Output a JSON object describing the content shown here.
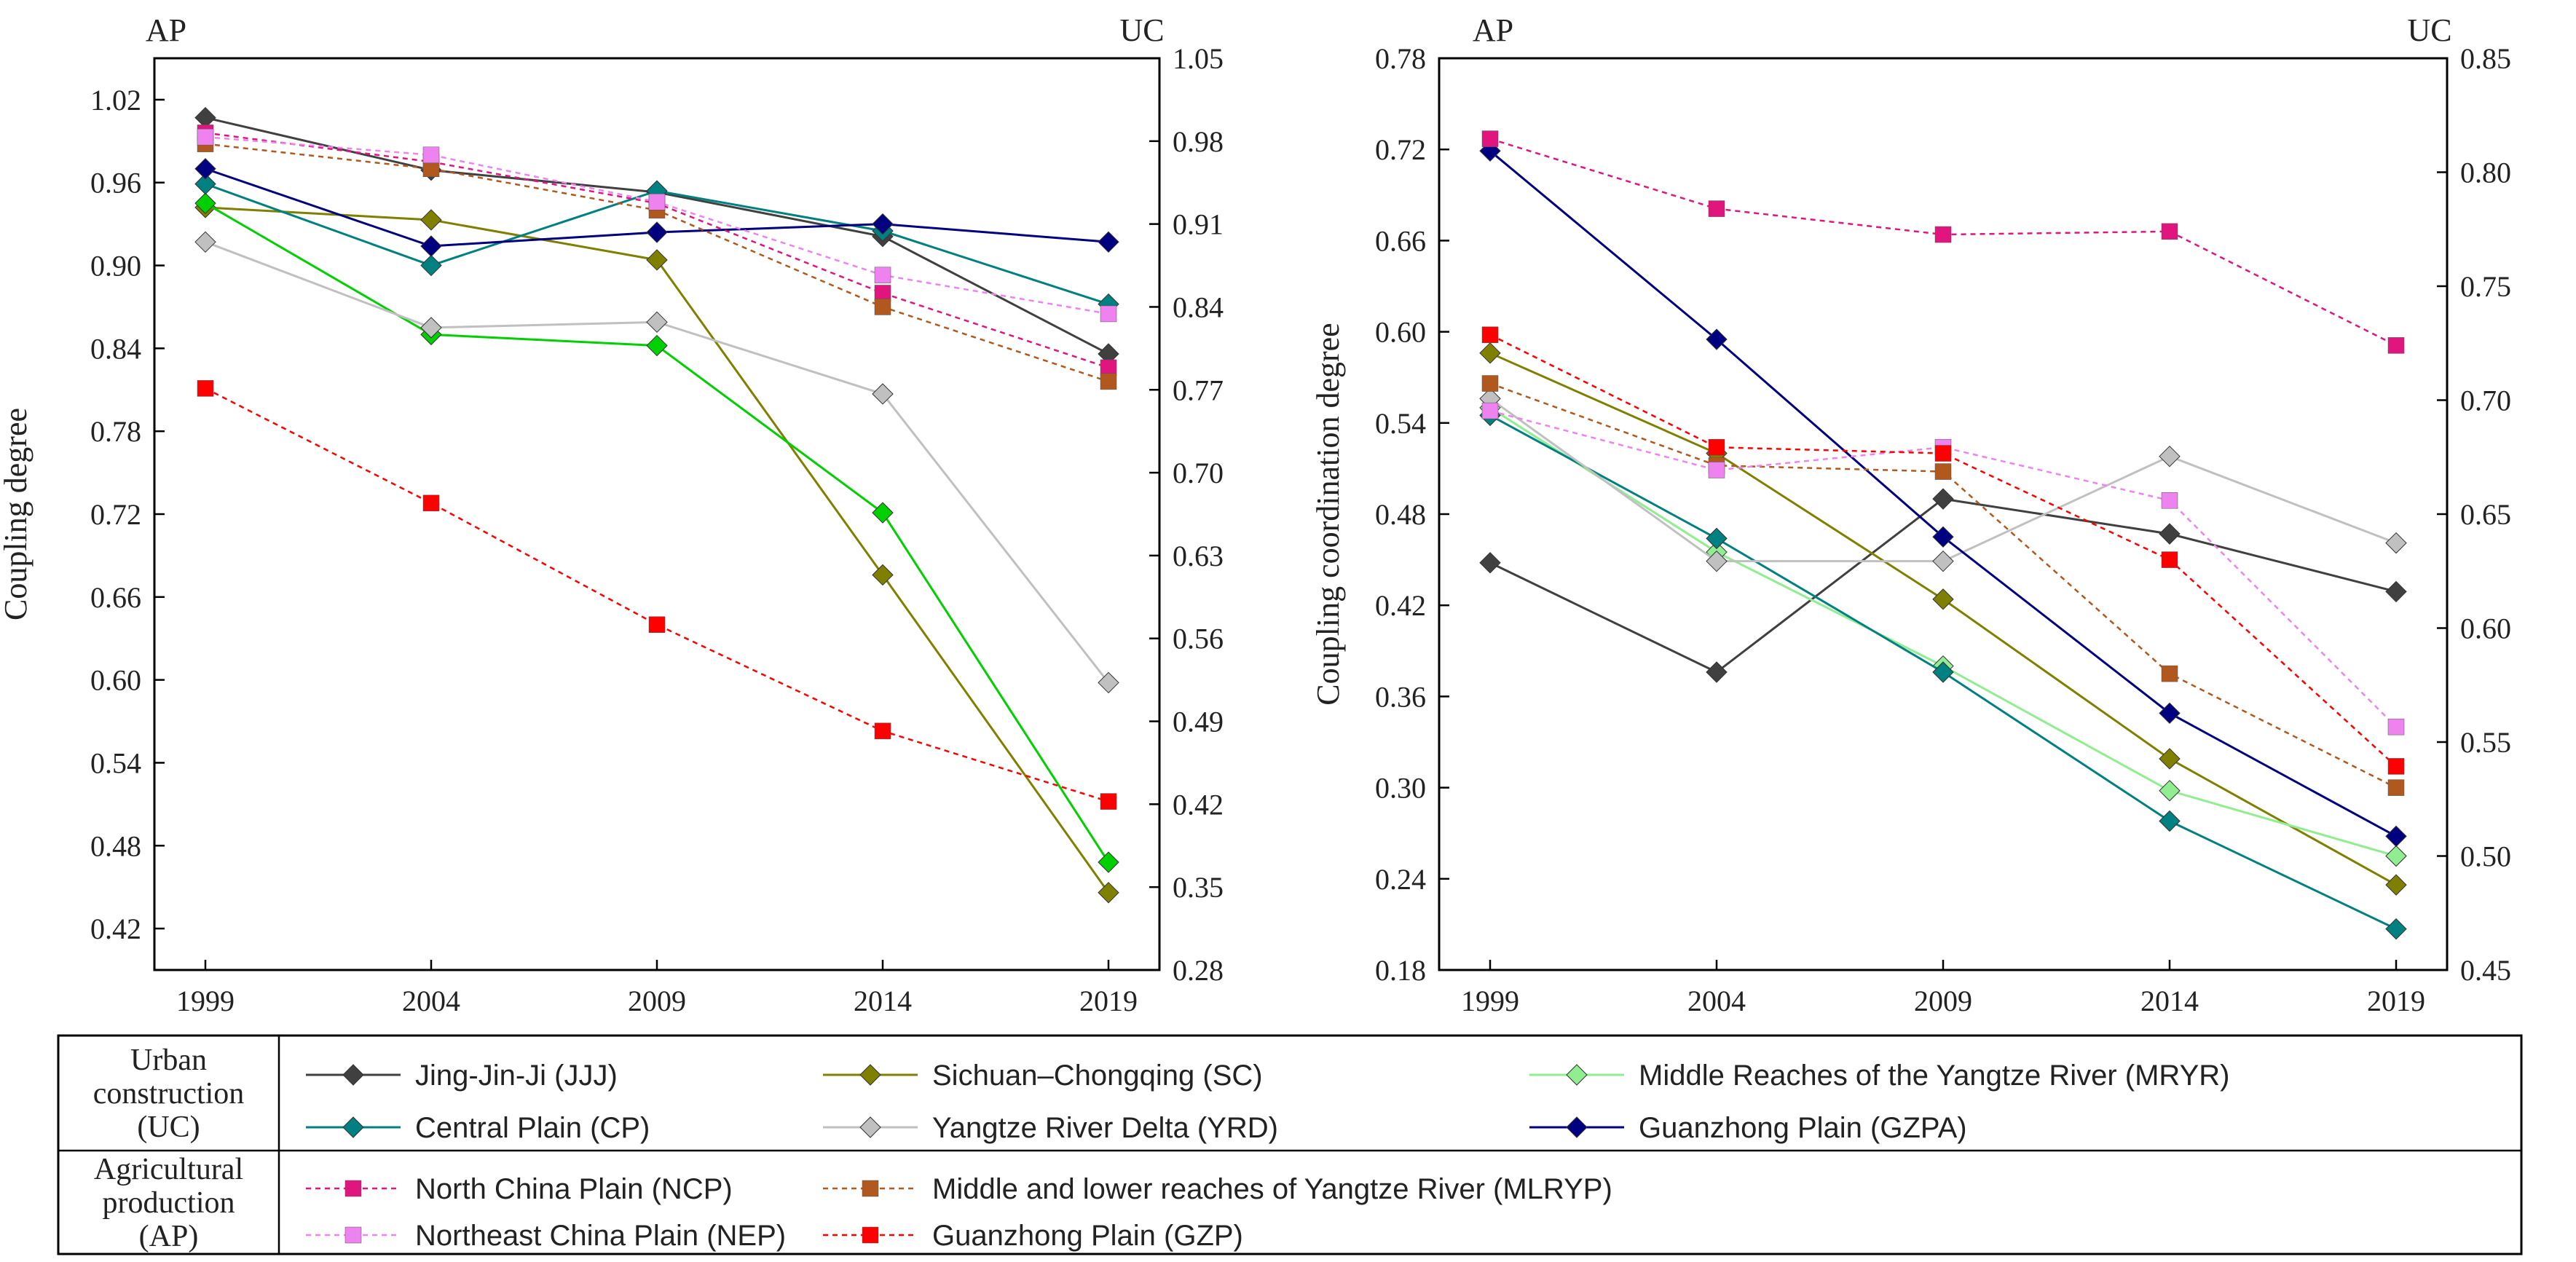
{
  "colors": {
    "JJJ": "#404040",
    "SC": "#808000",
    "MRYR": "#90ee90",
    "CP": "#008080",
    "YRD": "#c0c0c0",
    "GZPA": "#000080",
    "NCP": "#e0157e",
    "MLRYP": "#b0581e",
    "NEP": "#ee82ee",
    "GZP": "#ff0000",
    "GREEN_UC": "#00d000"
  },
  "legend": {
    "uc_group": [
      "Urban",
      "construction",
      "(UC)"
    ],
    "ap_group": [
      "Agricultural",
      "production",
      "(AP)"
    ],
    "items": [
      {
        "key": "JJJ",
        "label": "Jing-Jin-Ji (JJJ)",
        "dashed": false,
        "marker": "diamond"
      },
      {
        "key": "SC",
        "label": "Sichuan–Chongqing (SC)",
        "dashed": false,
        "marker": "diamond"
      },
      {
        "key": "MRYR",
        "label": "Middle Reaches of the Yangtze River (MRYR)",
        "dashed": false,
        "marker": "diamond"
      },
      {
        "key": "CP",
        "label": "Central Plain (CP)",
        "dashed": false,
        "marker": "diamond"
      },
      {
        "key": "YRD",
        "label": "Yangtze River Delta (YRD)",
        "dashed": false,
        "marker": "diamond"
      },
      {
        "key": "GZPA",
        "label": "Guanzhong Plain (GZPA)",
        "dashed": false,
        "marker": "diamond"
      },
      {
        "key": "NCP",
        "label": "North China Plain (NCP)",
        "dashed": true,
        "marker": "square"
      },
      {
        "key": "MLRYP",
        "label": "Middle and lower reaches of Yangtze River (MLRYP)",
        "dashed": true,
        "marker": "square"
      },
      {
        "key": "NEP",
        "label": "Northeast China Plain (NEP)",
        "dashed": true,
        "marker": "square"
      },
      {
        "key": "GZP",
        "label": "Guanzhong Plain (GZP)",
        "dashed": true,
        "marker": "square"
      }
    ]
  },
  "chart_data": [
    {
      "type": "line",
      "title": "",
      "ylabel": "Coupling degree",
      "left_axis_title": "AP",
      "right_axis_title": "UC",
      "x": [
        "1999",
        "2004",
        "2009",
        "2014",
        "2019"
      ],
      "ylim_left": [
        0.39,
        1.05
      ],
      "yticks_left": [
        "0.42",
        "0.48",
        "0.54",
        "0.60",
        "0.66",
        "0.72",
        "0.78",
        "0.84",
        "0.90",
        "0.96",
        "1.02"
      ],
      "ylim_right": [
        0.28,
        1.05
      ],
      "yticks_right": [
        "0.28",
        "0.35",
        "0.42",
        "0.49",
        "0.56",
        "0.63",
        "0.70",
        "0.77",
        "0.84",
        "0.91",
        "0.98",
        "1.05"
      ],
      "series": [
        {
          "name": "Jing-Jin-Ji (JJJ)",
          "key": "JJJ",
          "axis": "left",
          "values": [
            1.007,
            0.969,
            0.953,
            0.921,
            0.836
          ]
        },
        {
          "name": "Sichuan–Chongqing (SC)",
          "key": "SC",
          "axis": "left",
          "values": [
            0.942,
            0.933,
            0.904,
            0.676,
            0.446
          ]
        },
        {
          "name": "Middle Reaches of the Yangtze River (MRYR)",
          "key": "GREEN_UC",
          "axis": "left",
          "values": [
            0.945,
            0.85,
            0.842,
            0.721,
            0.468
          ]
        },
        {
          "name": "Central Plain (CP)",
          "key": "CP",
          "axis": "left",
          "values": [
            0.959,
            0.9,
            0.954,
            0.925,
            0.872
          ]
        },
        {
          "name": "Yangtze River Delta (YRD)",
          "key": "YRD",
          "axis": "left",
          "values": [
            0.917,
            0.855,
            0.859,
            0.807,
            0.598
          ]
        },
        {
          "name": "Guanzhong Plain (GZPA)",
          "key": "GZPA",
          "axis": "left",
          "values": [
            0.97,
            0.914,
            0.924,
            0.93,
            0.917
          ]
        },
        {
          "name": "North China Plain (NCP)",
          "key": "NCP",
          "axis": "left",
          "values": [
            0.996,
            0.975,
            0.945,
            0.88,
            0.826
          ]
        },
        {
          "name": "Middle and lower reaches of Yangtze River (MLRYP)",
          "key": "MLRYP",
          "axis": "left",
          "values": [
            0.988,
            0.97,
            0.94,
            0.87,
            0.816
          ]
        },
        {
          "name": "Northeast China Plain (NEP)",
          "key": "NEP",
          "axis": "left",
          "values": [
            0.993,
            0.98,
            0.946,
            0.893,
            0.865
          ]
        },
        {
          "name": "Guanzhong Plain (GZP)",
          "key": "GZP",
          "axis": "left",
          "values": [
            0.811,
            0.728,
            0.64,
            0.563,
            0.512
          ]
        }
      ]
    },
    {
      "type": "line",
      "title": "",
      "ylabel": "Coupling coordination degree",
      "left_axis_title": "AP",
      "right_axis_title": "UC",
      "x": [
        "1999",
        "2004",
        "2009",
        "2014",
        "2019"
      ],
      "ylim_left": [
        0.18,
        0.78
      ],
      "yticks_left": [
        "0.18",
        "0.24",
        "0.30",
        "0.36",
        "0.42",
        "0.48",
        "0.54",
        "0.60",
        "0.66",
        "0.72",
        "0.78"
      ],
      "ylim_right": [
        0.45,
        0.85
      ],
      "yticks_right": [
        "0.45",
        "0.50",
        "0.55",
        "0.60",
        "0.65",
        "0.70",
        "0.75",
        "0.80",
        "0.85"
      ],
      "series": [
        {
          "name": "Jing-Jin-Ji (JJJ)",
          "key": "JJJ",
          "axis": "left",
          "values": [
            0.448,
            0.376,
            0.49,
            0.467,
            0.429
          ]
        },
        {
          "name": "Sichuan–Chongqing (SC)",
          "key": "SC",
          "axis": "left",
          "values": [
            0.586,
            0.52,
            0.424,
            0.319,
            0.236
          ]
        },
        {
          "name": "Middle Reaches of the Yangtze River (MRYR)",
          "key": "MRYR",
          "axis": "left",
          "values": [
            0.55,
            0.455,
            0.38,
            0.298,
            0.255
          ]
        },
        {
          "name": "Central Plain (CP)",
          "key": "CP",
          "axis": "left",
          "values": [
            0.545,
            0.464,
            0.376,
            0.278,
            0.207
          ]
        },
        {
          "name": "Yangtze River Delta (YRD)",
          "key": "YRD",
          "axis": "left",
          "values": [
            0.556,
            0.449,
            0.449,
            0.518,
            0.461
          ]
        },
        {
          "name": "Guanzhong Plain (GZPA)",
          "key": "GZPA",
          "axis": "left",
          "values": [
            0.719,
            0.595,
            0.465,
            0.349,
            0.268
          ]
        },
        {
          "name": "North China Plain (NCP)",
          "key": "NCP",
          "axis": "left",
          "values": [
            0.727,
            0.681,
            0.664,
            0.666,
            0.591
          ]
        },
        {
          "name": "Middle and lower reaches of Yangtze River (MLRYP)",
          "key": "MLRYP",
          "axis": "left",
          "values": [
            0.566,
            0.512,
            0.508,
            0.375,
            0.3
          ]
        },
        {
          "name": "Northeast China Plain (NEP)",
          "key": "NEP",
          "axis": "left",
          "values": [
            0.548,
            0.509,
            0.524,
            0.489,
            0.34
          ]
        },
        {
          "name": "Guanzhong Plain (GZP)",
          "key": "GZP",
          "axis": "left",
          "values": [
            0.598,
            0.524,
            0.52,
            0.45,
            0.314
          ]
        }
      ]
    }
  ]
}
